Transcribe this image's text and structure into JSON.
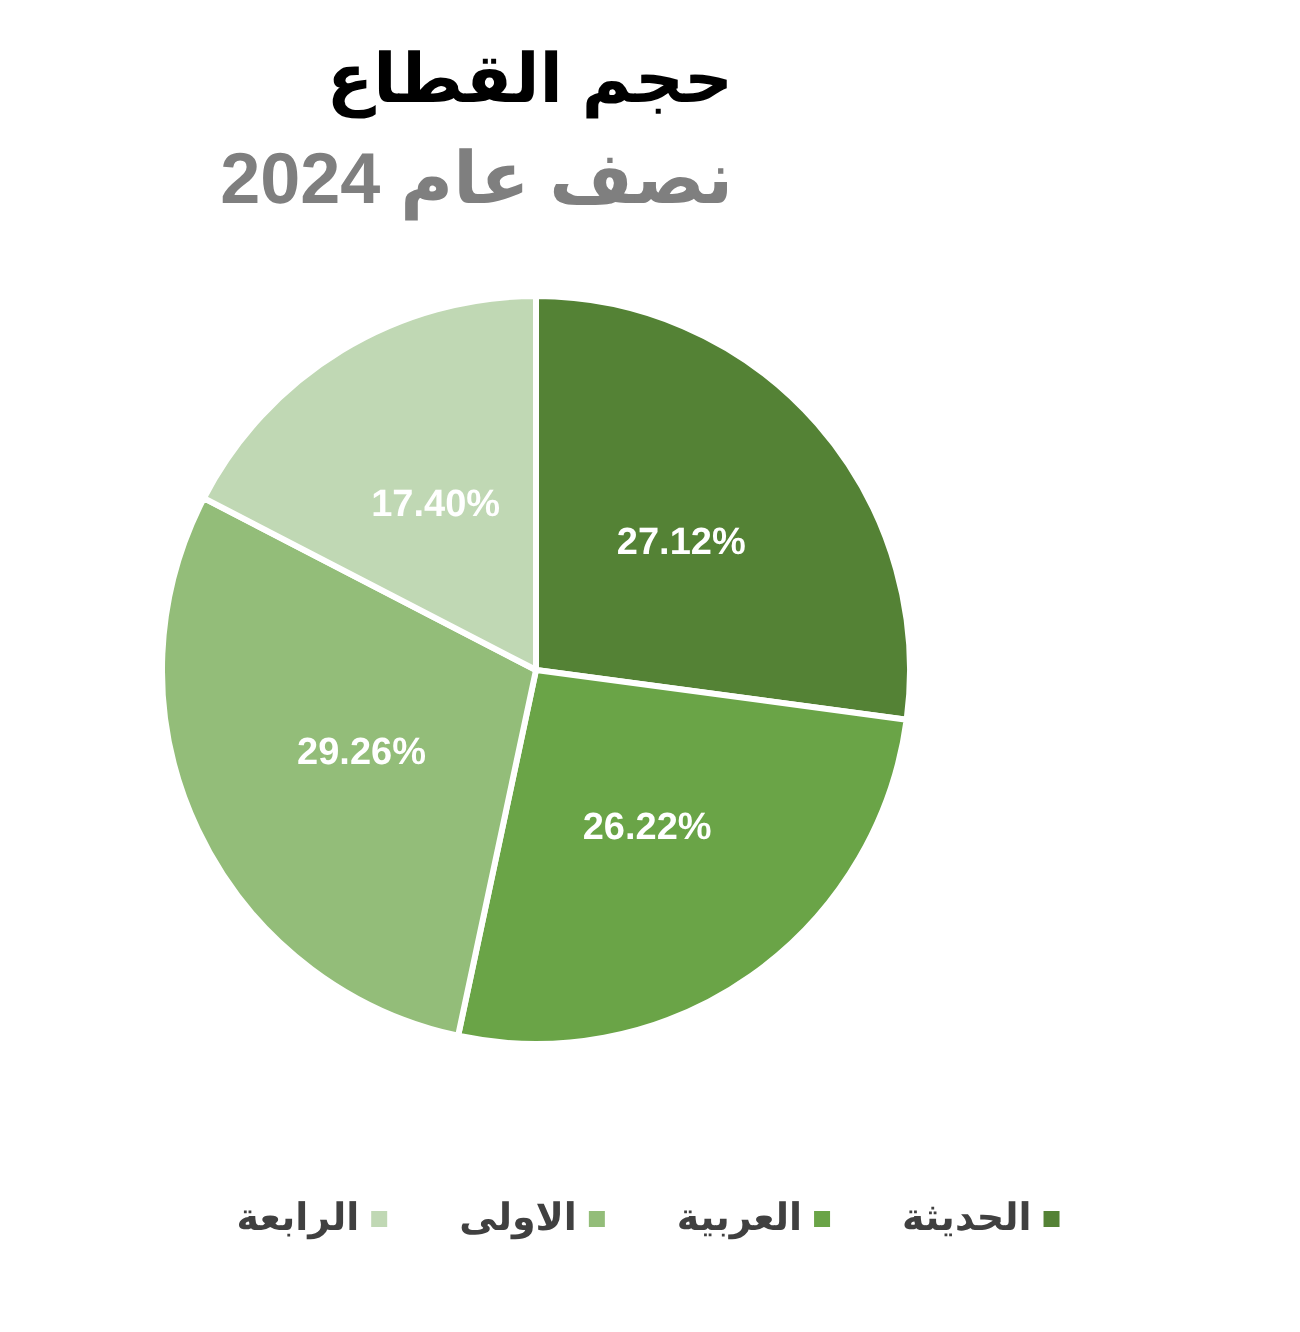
{
  "chart_data": {
    "type": "pie",
    "title": "حجم القطاع",
    "subtitle": "نصف عام 2024",
    "categories": [
      "الحديثة",
      "العربية",
      "الاولى",
      "الرابعة"
    ],
    "values": [
      27.12,
      26.22,
      29.26,
      17.4
    ],
    "value_labels": [
      "27.12%",
      "26.22%",
      "29.26%",
      "17.40%"
    ],
    "colors": [
      "#548235",
      "#6aa447",
      "#93bd79",
      "#c0d8b4"
    ],
    "legend": "bottom"
  }
}
